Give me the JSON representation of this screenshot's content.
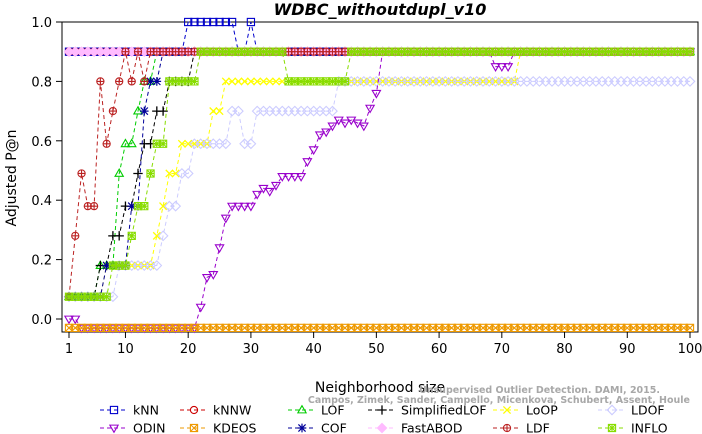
{
  "chart_data": {
    "type": "line",
    "title": "WDBC_withoutdupl_v10",
    "xlabel": "Neighborhood size",
    "ylabel": "Adjusted P@n",
    "xlim": [
      1,
      100
    ],
    "ylim": [
      -0.05,
      1.0
    ],
    "xticks": [
      1,
      10,
      20,
      30,
      40,
      50,
      60,
      70,
      80,
      90,
      100
    ],
    "yticks": [
      0.0,
      0.2,
      0.4,
      0.6,
      0.8,
      1.0
    ],
    "grid": false,
    "legend_position": "bottom",
    "watermark": [
      "Unsupervised Outlier Detection. DAMI, 2015.",
      "Campos, Zimek, Sander, Campello, Micenkova, Schubert, Assent, Houle"
    ],
    "series": [
      {
        "name": "kNN",
        "color": "#0000cc",
        "marker": "square",
        "segments": [
          [
            1,
            0.9
          ],
          [
            19,
            0.9
          ],
          [
            20,
            1.0
          ],
          [
            27,
            1.0
          ],
          [
            28,
            0.9
          ],
          [
            29,
            0.9
          ],
          [
            30,
            1.0
          ],
          [
            31,
            0.9
          ],
          [
            100,
            0.9
          ]
        ]
      },
      {
        "name": "kNNW",
        "color": "#cc0000",
        "marker": "circle",
        "segments": [
          [
            1,
            0.9
          ],
          [
            100,
            0.9
          ]
        ]
      },
      {
        "name": "LOF",
        "color": "#00cc00",
        "marker": "triangle-up",
        "segments": [
          [
            1,
            0.075
          ],
          [
            5,
            0.075
          ],
          [
            6,
            0.18
          ],
          [
            8,
            0.18
          ],
          [
            9,
            0.49
          ],
          [
            10,
            0.59
          ],
          [
            11,
            0.59
          ],
          [
            12,
            0.7
          ],
          [
            13,
            0.8
          ],
          [
            14,
            0.8
          ],
          [
            15,
            0.9
          ],
          [
            100,
            0.9
          ]
        ]
      },
      {
        "name": "SimplifiedLOF",
        "color": "#000000",
        "marker": "plus",
        "segments": [
          [
            1,
            0.075
          ],
          [
            5,
            0.075
          ],
          [
            6,
            0.18
          ],
          [
            7,
            0.18
          ],
          [
            8,
            0.28
          ],
          [
            9,
            0.28
          ],
          [
            10,
            0.38
          ],
          [
            11,
            0.38
          ],
          [
            12,
            0.49
          ],
          [
            13,
            0.59
          ],
          [
            14,
            0.59
          ],
          [
            15,
            0.7
          ],
          [
            16,
            0.7
          ],
          [
            17,
            0.8
          ],
          [
            20,
            0.8
          ],
          [
            21,
            0.9
          ],
          [
            100,
            0.9
          ]
        ]
      },
      {
        "name": "LoOP",
        "color": "#ffff00",
        "marker": "x",
        "segments": [
          [
            1,
            0.075
          ],
          [
            6,
            0.075
          ],
          [
            7,
            0.18
          ],
          [
            14,
            0.18
          ],
          [
            15,
            0.28
          ],
          [
            16,
            0.38
          ],
          [
            17,
            0.49
          ],
          [
            18,
            0.49
          ],
          [
            19,
            0.59
          ],
          [
            23,
            0.59
          ],
          [
            24,
            0.7
          ],
          [
            25,
            0.7
          ],
          [
            26,
            0.8
          ],
          [
            72,
            0.8
          ],
          [
            73,
            0.9
          ],
          [
            100,
            0.9
          ]
        ]
      },
      {
        "name": "LDOF",
        "color": "#ccccff",
        "marker": "diamond",
        "segments": [
          [
            1,
            0.075
          ],
          [
            8,
            0.075
          ],
          [
            9,
            0.18
          ],
          [
            15,
            0.18
          ],
          [
            16,
            0.28
          ],
          [
            17,
            0.38
          ],
          [
            18,
            0.38
          ],
          [
            19,
            0.49
          ],
          [
            20,
            0.49
          ],
          [
            21,
            0.59
          ],
          [
            26,
            0.59
          ],
          [
            27,
            0.7
          ],
          [
            28,
            0.7
          ],
          [
            29,
            0.59
          ],
          [
            30,
            0.59
          ],
          [
            31,
            0.7
          ],
          [
            43,
            0.7
          ],
          [
            44,
            0.8
          ],
          [
            100,
            0.8
          ]
        ]
      },
      {
        "name": "ODIN",
        "color": "#9900cc",
        "marker": "triangle-down",
        "segments": [
          [
            1,
            0.0
          ],
          [
            2,
            0.0
          ],
          [
            3,
            -0.03
          ],
          [
            21,
            -0.03
          ],
          [
            22,
            0.04
          ],
          [
            23,
            0.14
          ],
          [
            24,
            0.15
          ],
          [
            25,
            0.24
          ],
          [
            26,
            0.34
          ],
          [
            27,
            0.38
          ],
          [
            30,
            0.38
          ],
          [
            31,
            0.42
          ],
          [
            32,
            0.44
          ],
          [
            33,
            0.43
          ],
          [
            34,
            0.45
          ],
          [
            35,
            0.48
          ],
          [
            38,
            0.48
          ],
          [
            39,
            0.53
          ],
          [
            40,
            0.57
          ],
          [
            41,
            0.62
          ],
          [
            42,
            0.63
          ],
          [
            43,
            0.65
          ],
          [
            44,
            0.67
          ],
          [
            45,
            0.66
          ],
          [
            46,
            0.67
          ],
          [
            47,
            0.66
          ],
          [
            48,
            0.65
          ],
          [
            49,
            0.71
          ],
          [
            50,
            0.76
          ],
          [
            51,
            0.9
          ],
          [
            68,
            0.9
          ],
          [
            69,
            0.85
          ],
          [
            71,
            0.85
          ],
          [
            72,
            0.9
          ],
          [
            100,
            0.9
          ]
        ]
      },
      {
        "name": "KDEOS",
        "color": "#ee9900",
        "marker": "square-x",
        "segments": [
          [
            1,
            -0.03
          ],
          [
            100,
            -0.03
          ]
        ]
      },
      {
        "name": "COF",
        "color": "#000099",
        "marker": "asterisk",
        "segments": [
          [
            1,
            0.075
          ],
          [
            6,
            0.075
          ],
          [
            7,
            0.18
          ],
          [
            10,
            0.18
          ],
          [
            11,
            0.38
          ],
          [
            12,
            0.38
          ],
          [
            13,
            0.7
          ],
          [
            14,
            0.8
          ],
          [
            15,
            0.8
          ],
          [
            16,
            0.9
          ],
          [
            100,
            0.9
          ]
        ]
      },
      {
        "name": "FastABOD",
        "color": "#ffbbff",
        "marker": "diamond-filled",
        "segments": [
          [
            1,
            0.9
          ],
          [
            100,
            0.9
          ]
        ]
      },
      {
        "name": "LDF",
        "color": "#bb2222",
        "marker": "circle-plus",
        "segments": [
          [
            1,
            0.075
          ],
          [
            2,
            0.28
          ],
          [
            3,
            0.49
          ],
          [
            4,
            0.38
          ],
          [
            5,
            0.38
          ],
          [
            6,
            0.8
          ],
          [
            7,
            0.59
          ],
          [
            8,
            0.7
          ],
          [
            9,
            0.8
          ],
          [
            10,
            0.9
          ],
          [
            11,
            0.8
          ],
          [
            12,
            0.9
          ],
          [
            13,
            0.8
          ],
          [
            14,
            0.9
          ],
          [
            100,
            0.9
          ]
        ]
      },
      {
        "name": "INFLO",
        "color": "#88dd00",
        "marker": "square-cross",
        "segments": [
          [
            1,
            0.075
          ],
          [
            7,
            0.075
          ],
          [
            8,
            0.18
          ],
          [
            10,
            0.18
          ],
          [
            11,
            0.28
          ],
          [
            12,
            0.38
          ],
          [
            14,
            0.49
          ],
          [
            15,
            0.59
          ],
          [
            16,
            0.59
          ],
          [
            17,
            0.8
          ],
          [
            21,
            0.8
          ],
          [
            22,
            0.9
          ],
          [
            35,
            0.9
          ],
          [
            36,
            0.8
          ],
          [
            45,
            0.8
          ],
          [
            46,
            0.9
          ],
          [
            100,
            0.9
          ]
        ]
      }
    ]
  }
}
